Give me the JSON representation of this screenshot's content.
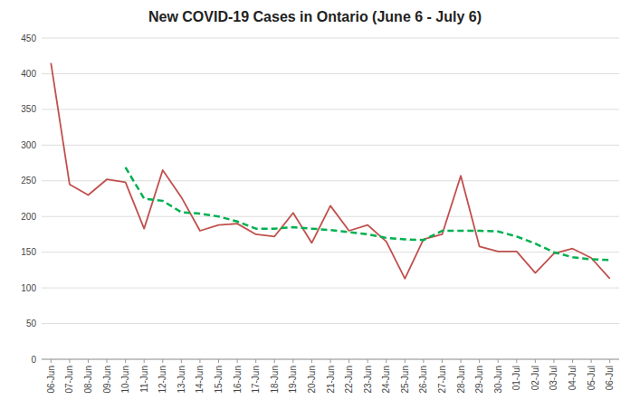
{
  "chart_data": {
    "type": "line",
    "title": "New COVID-19 Cases in Ontario (June 6 - July 6)",
    "categories": [
      "06-Jun",
      "07-Jun",
      "08-Jun",
      "09-Jun",
      "10-Jun",
      "11-Jun",
      "12-Jun",
      "13-Jun",
      "14-Jun",
      "15-Jun",
      "16-Jun",
      "17-Jun",
      "18-Jun",
      "19-Jun",
      "20-Jun",
      "21-Jun",
      "22-Jun",
      "23-Jun",
      "24-Jun",
      "25-Jun",
      "26-Jun",
      "27-Jun",
      "28-Jun",
      "29-Jun",
      "30-Jun",
      "01-Jul",
      "02-Jul",
      "03-Jul",
      "04-Jul",
      "05-Jul",
      "06-Jul"
    ],
    "series": [
      {
        "color": "#c0504d",
        "line_style": "solid",
        "values": [
          415,
          245,
          230,
          252,
          248,
          183,
          265,
          227,
          180,
          188,
          190,
          175,
          172,
          205,
          163,
          215,
          180,
          188,
          165,
          113,
          168,
          175,
          257,
          158,
          151,
          151,
          121,
          148,
          155,
          142,
          113
        ]
      },
      {
        "color": "#00b050",
        "line_style": "dashed",
        "values": [
          null,
          null,
          null,
          null,
          269,
          225,
          222,
          206,
          204,
          200,
          193,
          183,
          183,
          185,
          183,
          181,
          178,
          175,
          170,
          168,
          167,
          180,
          180,
          180,
          179,
          172,
          162,
          150,
          143,
          140,
          139
        ]
      }
    ],
    "ylim": [
      0,
      450
    ],
    "yticks": [
      0,
      50,
      100,
      150,
      200,
      250,
      300,
      350,
      400,
      450
    ],
    "grid": true
  }
}
